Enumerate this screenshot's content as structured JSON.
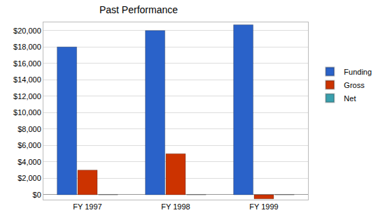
{
  "chart_data": {
    "type": "bar",
    "title": "Past Performance",
    "categories": [
      "FY 1997",
      "FY 1998",
      "FY 1999"
    ],
    "series": [
      {
        "name": "Funding",
        "color": "#2a62c9",
        "values": [
          18000,
          20000,
          20700
        ]
      },
      {
        "name": "Gross",
        "color": "#cc3300",
        "values": [
          3000,
          5000,
          -500
        ]
      },
      {
        "name": "Net",
        "color": "#3aa0ad",
        "values": [
          0,
          0,
          0
        ]
      }
    ],
    "ylim": [
      -600,
      21000
    ],
    "yticks": [
      {
        "value": 0,
        "label": "$0"
      },
      {
        "value": 2000,
        "label": "$2,000"
      },
      {
        "value": 4000,
        "label": "$4,000"
      },
      {
        "value": 6000,
        "label": "$6,000"
      },
      {
        "value": 8000,
        "label": "$8,000"
      },
      {
        "value": 10000,
        "label": "$10,000"
      },
      {
        "value": 12000,
        "label": "$12,000"
      },
      {
        "value": 14000,
        "label": "$14,000"
      },
      {
        "value": 16000,
        "label": "$16,000"
      },
      {
        "value": 18000,
        "label": "$18,000"
      },
      {
        "value": 20000,
        "label": "$20,000"
      }
    ],
    "grid": true,
    "legend": "right"
  }
}
